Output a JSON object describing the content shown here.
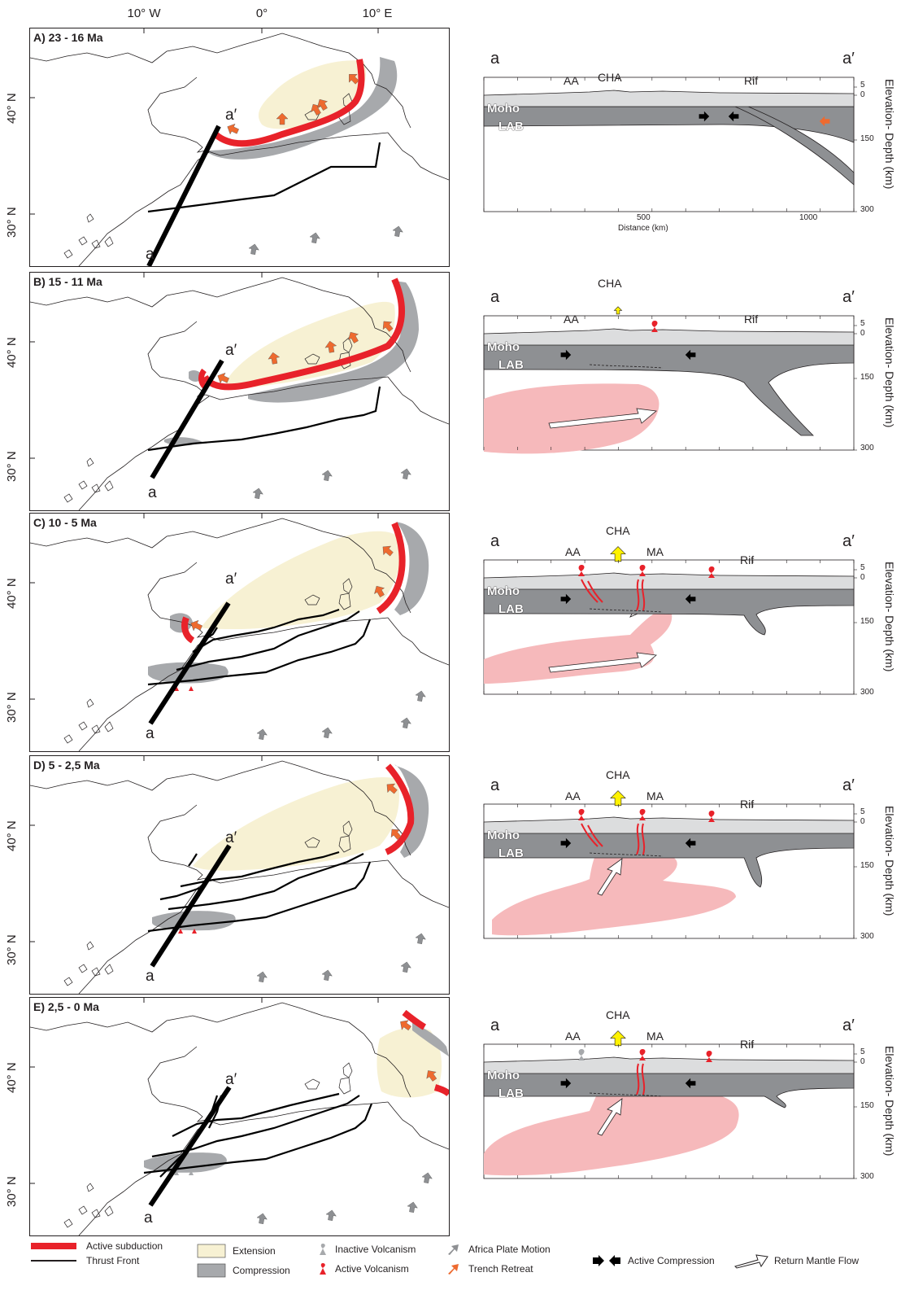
{
  "axes": {
    "lon_ticks": [
      "10° W",
      "0°",
      "10° E"
    ],
    "lat_ticks": [
      "40° N",
      "30° N"
    ]
  },
  "panels": [
    {
      "id": "A",
      "label": "A) 23 - 16 Ma",
      "section": {
        "labels": [
          "AA",
          "CHA",
          "Rif"
        ],
        "show_distance": true,
        "distance_ticks": [
          "500",
          "1000"
        ],
        "distance_label": "Distance (km)"
      }
    },
    {
      "id": "B",
      "label": "B) 15 - 11 Ma",
      "section": {
        "labels": [
          "AA",
          "CHA",
          "Rif"
        ],
        "show_distance": false
      }
    },
    {
      "id": "C",
      "label": "C) 10 - 5 Ma",
      "section": {
        "labels": [
          "AA",
          "CHA",
          "MA",
          "Rif"
        ],
        "show_distance": false
      }
    },
    {
      "id": "D",
      "label": "D) 5 - 2,5 Ma",
      "section": {
        "labels": [
          "AA",
          "CHA",
          "MA",
          "Rif"
        ],
        "show_distance": false
      }
    },
    {
      "id": "E",
      "label": "E) 2,5 - 0 Ma",
      "section": {
        "labels": [
          "AA",
          "CHA",
          "MA",
          "Rif"
        ],
        "show_distance": false
      }
    }
  ],
  "map_labels": {
    "a": "a",
    "a_prime": "a′"
  },
  "section_common": {
    "moho": "Moho",
    "lab": "LAB",
    "depth_ticks": [
      "5",
      "0",
      "150",
      "300"
    ],
    "depth_axis_label": "Elevation- Depth (km)"
  },
  "legend": {
    "active_subduction": "Active subduction",
    "thrust_front": "Thrust Front",
    "extension": "Extension",
    "compression": "Compression",
    "inactive_volcanism": "Inactive Volcanism",
    "active_volcanism": "Active Volcanism",
    "africa_plate_motion": "Africa Plate Motion",
    "trench_retreat": "Trench Retreat",
    "active_compression": "Active Compression",
    "return_mantle_flow": "Return Mantle Flow"
  },
  "colors": {
    "subduction": "#e8222a",
    "extension": "#f7f1d3",
    "compression": "#a7a9ac",
    "mantle_flow": "#f6b9bb",
    "trench_retreat": "#ee6a2f",
    "volcano_active": "#e8222a",
    "cha_arrow": "#fff200",
    "crust": "#dcddde",
    "lithosphere": "#8e9093"
  }
}
